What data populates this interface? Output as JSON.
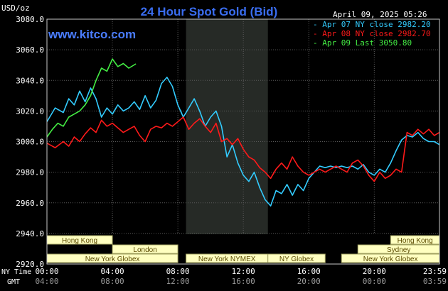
{
  "header": {
    "title": "24 Hour Spot Gold (Bid)",
    "unit": "USD/oz",
    "datetime": "April 09, 2025 05:26",
    "website": "www.kitco.com"
  },
  "colors": {
    "background": "#000000",
    "title": "#3a6df0",
    "website": "#4a7dff",
    "grid": "#5a5a5a",
    "frame": "#c8c8c8",
    "shade": "#262a26",
    "session_fill": "#ffffc0",
    "session_border": "#a0a060",
    "series_cyan": "#33ccff",
    "series_red": "#ff1a1a",
    "series_green": "#44ee44"
  },
  "sessions": [
    {
      "name": "Hong Kong",
      "start": "00:00",
      "end": "04:00"
    },
    {
      "name": "London",
      "start": "04:00",
      "end": "08:00"
    },
    {
      "name": "New York Globex",
      "start": "00:00",
      "end": "08:00"
    },
    {
      "name": "New York NYMEX",
      "start": "08:30",
      "end": "13:30"
    },
    {
      "name": "NY Globex",
      "start": "13:30",
      "end": "17:00"
    },
    {
      "name": "Hong Kong",
      "start": "21:00",
      "end": "23:59"
    },
    {
      "name": "Sydney",
      "start": "19:00",
      "end": "23:59"
    },
    {
      "name": "New York Globex",
      "start": "18:00",
      "end": "23:59"
    }
  ],
  "chart_data": {
    "type": "line",
    "title": "24 Hour Spot Gold (Bid)",
    "ylabel": "USD/oz",
    "ylim": [
      2920,
      3080
    ],
    "y_ticks": [
      "3080.0",
      "3060.0",
      "3040.0",
      "3020.0",
      "3000.0",
      "2980.0",
      "2960.0",
      "2940.0",
      "2920.0"
    ],
    "x_ticks_ny": [
      "00:00",
      "04:00",
      "08:00",
      "12:00",
      "16:00",
      "20:00",
      "23:59"
    ],
    "x_ticks_gmt": [
      "04:00",
      "08:00",
      "12:00",
      "16:00",
      "20:00",
      "00:00",
      "03:59"
    ],
    "x_axis_label_ny": "NY Time",
    "x_axis_label_gmt": "GMT",
    "shaded_region": [
      "08:30",
      "13:30"
    ],
    "legend_position": "top-right",
    "grid": true,
    "series": [
      {
        "name": "Apr 07 NY close 2982.20",
        "color": "#33ccff",
        "points": [
          [
            "00:00",
            3013
          ],
          [
            "00:30",
            3022
          ],
          [
            "01:00",
            3019
          ],
          [
            "01:20",
            3028
          ],
          [
            "01:40",
            3024
          ],
          [
            "02:00",
            3033
          ],
          [
            "02:20",
            3026
          ],
          [
            "02:40",
            3035
          ],
          [
            "03:00",
            3028
          ],
          [
            "03:20",
            3016
          ],
          [
            "03:40",
            3022
          ],
          [
            "04:00",
            3018
          ],
          [
            "04:20",
            3024
          ],
          [
            "04:40",
            3020
          ],
          [
            "05:00",
            3022
          ],
          [
            "05:20",
            3026
          ],
          [
            "05:40",
            3021
          ],
          [
            "06:00",
            3030
          ],
          [
            "06:20",
            3022
          ],
          [
            "06:40",
            3027
          ],
          [
            "07:00",
            3038
          ],
          [
            "07:20",
            3042
          ],
          [
            "07:40",
            3036
          ],
          [
            "08:00",
            3024
          ],
          [
            "08:20",
            3016
          ],
          [
            "08:40",
            3022
          ],
          [
            "09:00",
            3028
          ],
          [
            "09:20",
            3020
          ],
          [
            "09:40",
            3010
          ],
          [
            "10:00",
            3016
          ],
          [
            "10:20",
            3020
          ],
          [
            "10:40",
            3010
          ],
          [
            "11:00",
            2990
          ],
          [
            "11:20",
            2998
          ],
          [
            "11:40",
            2986
          ],
          [
            "12:00",
            2978
          ],
          [
            "12:20",
            2974
          ],
          [
            "12:40",
            2980
          ],
          [
            "13:00",
            2970
          ],
          [
            "13:20",
            2962
          ],
          [
            "13:40",
            2958
          ],
          [
            "14:00",
            2968
          ],
          [
            "14:20",
            2966
          ],
          [
            "14:40",
            2972
          ],
          [
            "15:00",
            2965
          ],
          [
            "15:20",
            2972
          ],
          [
            "15:40",
            2968
          ],
          [
            "16:00",
            2976
          ],
          [
            "16:20",
            2980
          ],
          [
            "16:40",
            2984
          ],
          [
            "17:00",
            2983
          ],
          [
            "17:20",
            2984
          ],
          [
            "17:40",
            2983
          ],
          [
            "18:00",
            2984
          ],
          [
            "18:20",
            2983
          ],
          [
            "18:40",
            2984
          ],
          [
            "19:00",
            2982
          ],
          [
            "19:20",
            2985
          ],
          [
            "19:40",
            2980
          ],
          [
            "20:00",
            2978
          ],
          [
            "20:20",
            2982
          ],
          [
            "20:40",
            2980
          ],
          [
            "21:00",
            2986
          ],
          [
            "21:20",
            2994
          ],
          [
            "21:40",
            3001
          ],
          [
            "22:00",
            3004
          ],
          [
            "22:20",
            3003
          ],
          [
            "22:40",
            3006
          ],
          [
            "23:00",
            3002
          ],
          [
            "23:20",
            3000
          ],
          [
            "23:40",
            3000
          ],
          [
            "23:59",
            2998
          ]
        ]
      },
      {
        "name": "Apr 08 NY close 2982.70",
        "color": "#ff1a1a",
        "points": [
          [
            "00:00",
            2999
          ],
          [
            "00:30",
            2996
          ],
          [
            "01:00",
            3000
          ],
          [
            "01:20",
            2997
          ],
          [
            "01:40",
            3003
          ],
          [
            "02:00",
            3000
          ],
          [
            "02:20",
            3005
          ],
          [
            "02:40",
            3009
          ],
          [
            "03:00",
            3006
          ],
          [
            "03:20",
            3014
          ],
          [
            "03:40",
            3010
          ],
          [
            "04:00",
            3012
          ],
          [
            "04:20",
            3009
          ],
          [
            "04:40",
            3006
          ],
          [
            "05:00",
            3008
          ],
          [
            "05:20",
            3010
          ],
          [
            "05:40",
            3004
          ],
          [
            "06:00",
            3000
          ],
          [
            "06:20",
            3008
          ],
          [
            "06:40",
            3010
          ],
          [
            "07:00",
            3009
          ],
          [
            "07:20",
            3012
          ],
          [
            "07:40",
            3010
          ],
          [
            "08:00",
            3013
          ],
          [
            "08:20",
            3016
          ],
          [
            "08:40",
            3008
          ],
          [
            "09:00",
            3012
          ],
          [
            "09:20",
            3015
          ],
          [
            "09:40",
            3010
          ],
          [
            "10:00",
            3006
          ],
          [
            "10:20",
            3012
          ],
          [
            "10:40",
            3000
          ],
          [
            "11:00",
            3002
          ],
          [
            "11:20",
            2998
          ],
          [
            "11:40",
            3002
          ],
          [
            "12:00",
            2995
          ],
          [
            "12:20",
            2990
          ],
          [
            "12:40",
            2988
          ],
          [
            "13:00",
            2983
          ],
          [
            "13:20",
            2980
          ],
          [
            "13:40",
            2976
          ],
          [
            "14:00",
            2982
          ],
          [
            "14:20",
            2986
          ],
          [
            "14:40",
            2982
          ],
          [
            "15:00",
            2990
          ],
          [
            "15:20",
            2984
          ],
          [
            "15:40",
            2980
          ],
          [
            "16:00",
            2978
          ],
          [
            "16:20",
            2980
          ],
          [
            "16:40",
            2982
          ],
          [
            "17:00",
            2980
          ],
          [
            "17:20",
            2982
          ],
          [
            "17:40",
            2984
          ],
          [
            "18:00",
            2982
          ],
          [
            "18:20",
            2980
          ],
          [
            "18:40",
            2986
          ],
          [
            "19:00",
            2988
          ],
          [
            "19:20",
            2984
          ],
          [
            "19:40",
            2978
          ],
          [
            "20:00",
            2974
          ],
          [
            "20:20",
            2980
          ],
          [
            "20:40",
            2976
          ],
          [
            "21:00",
            2978
          ],
          [
            "21:20",
            2982
          ],
          [
            "21:40",
            2980
          ],
          [
            "22:00",
            3006
          ],
          [
            "22:20",
            3004
          ],
          [
            "22:40",
            3008
          ],
          [
            "23:00",
            3005
          ],
          [
            "23:20",
            3008
          ],
          [
            "23:40",
            3004
          ],
          [
            "23:59",
            3006
          ]
        ]
      },
      {
        "name": "Apr 09 Last 3050.80",
        "color": "#44ee44",
        "points": [
          [
            "00:00",
            3003
          ],
          [
            "00:20",
            3008
          ],
          [
            "00:40",
            3012
          ],
          [
            "01:00",
            3010
          ],
          [
            "01:20",
            3016
          ],
          [
            "01:40",
            3018
          ],
          [
            "02:00",
            3020
          ],
          [
            "02:20",
            3024
          ],
          [
            "02:40",
            3030
          ],
          [
            "03:00",
            3040
          ],
          [
            "03:20",
            3048
          ],
          [
            "03:40",
            3046
          ],
          [
            "04:00",
            3054
          ],
          [
            "04:20",
            3049
          ],
          [
            "04:40",
            3051
          ],
          [
            "05:00",
            3048
          ],
          [
            "05:26",
            3050.8
          ]
        ]
      }
    ]
  }
}
